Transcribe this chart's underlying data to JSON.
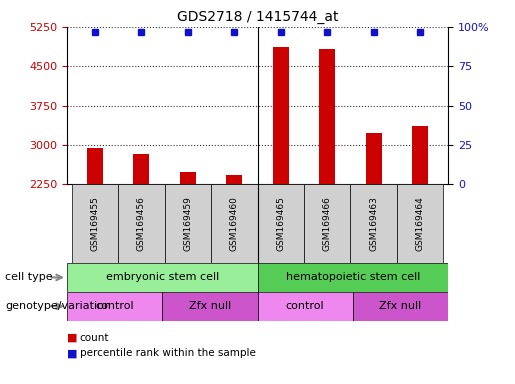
{
  "title": "GDS2718 / 1415744_at",
  "samples": [
    "GSM169455",
    "GSM169456",
    "GSM169459",
    "GSM169460",
    "GSM169465",
    "GSM169466",
    "GSM169463",
    "GSM169464"
  ],
  "counts": [
    2950,
    2820,
    2480,
    2430,
    4870,
    4820,
    3220,
    3360
  ],
  "y_min": 2250,
  "y_max": 5250,
  "y_ticks": [
    2250,
    3000,
    3750,
    4500,
    5250
  ],
  "y_ticks_right": [
    0,
    25,
    50,
    75,
    100
  ],
  "bar_color": "#cc0000",
  "dot_color": "#1111cc",
  "grid_color": "#333333",
  "sample_box_color": "#d0d0d0",
  "cell_type_groups": [
    {
      "label": "embryonic stem cell",
      "start": 0,
      "end": 4,
      "color": "#99ee99"
    },
    {
      "label": "hematopoietic stem cell",
      "start": 4,
      "end": 8,
      "color": "#55cc55"
    }
  ],
  "genotype_groups": [
    {
      "label": "control",
      "start": 0,
      "end": 2,
      "color": "#ee88ee"
    },
    {
      "label": "Zfx null",
      "start": 2,
      "end": 4,
      "color": "#cc55cc"
    },
    {
      "label": "control",
      "start": 4,
      "end": 6,
      "color": "#ee88ee"
    },
    {
      "label": "Zfx null",
      "start": 6,
      "end": 8,
      "color": "#cc55cc"
    }
  ],
  "legend_count_color": "#cc0000",
  "legend_pct_color": "#1111cc",
  "bg_color": "#ffffff",
  "tick_color_left": "#cc0000",
  "tick_color_right": "#1111cc",
  "cell_type_label": "cell type",
  "genotype_label": "genotype/variation",
  "legend_count_text": "count",
  "legend_pct_text": "percentile rank within the sample",
  "arrow_color": "#aaaaaa"
}
